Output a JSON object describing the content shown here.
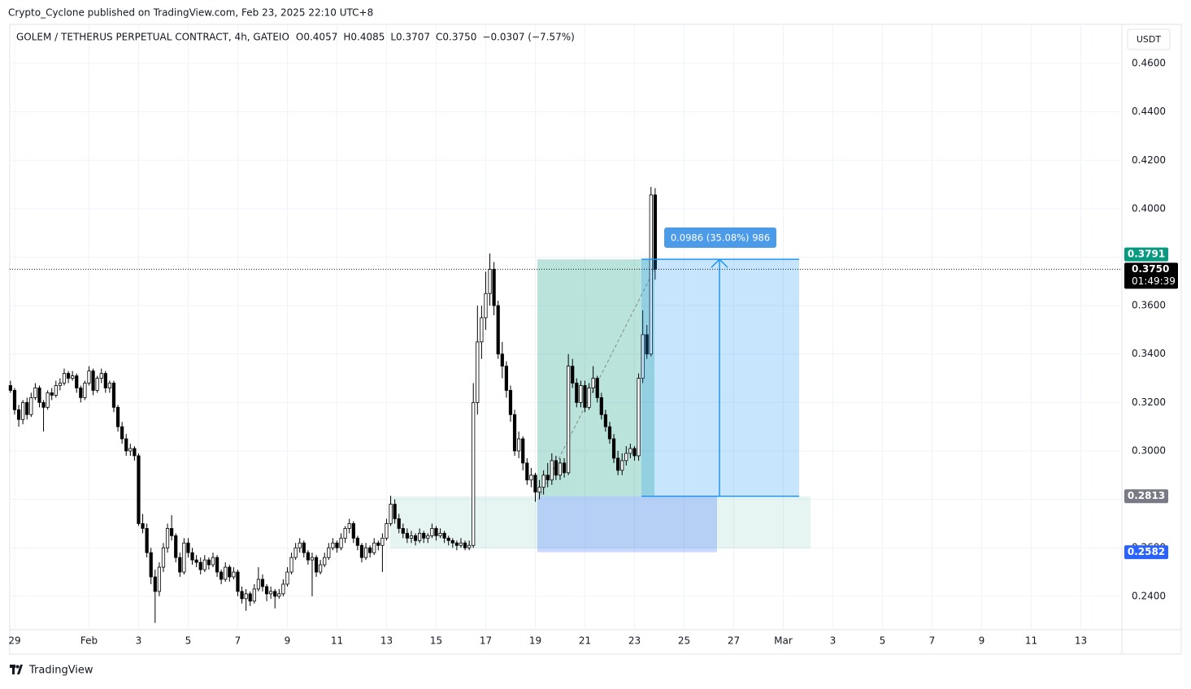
{
  "publisher_line": "Crypto_Cyclone published on TradingView.com, Feb 23, 2025 22:10 UTC+8",
  "footer": "TradingView",
  "chart_data": {
    "type": "candlestick",
    "title": "GOLEM / TETHERUS PERPETUAL CONTRACT, 4h, GATEIO",
    "header_values": [
      "O0.4057",
      "H0.4085",
      "L0.3707",
      "C0.3750",
      "−0.0307 (−7.57%)"
    ],
    "currency": "USDT",
    "xlim": [
      -4.7,
      1063.9
    ],
    "ylim": [
      0.2262,
      0.4647
    ],
    "xticks": [
      {
        "value": 0,
        "label": "29"
      },
      {
        "value": 72,
        "label": "Feb"
      },
      {
        "value": 120,
        "label": "3"
      },
      {
        "value": 168,
        "label": "5"
      },
      {
        "value": 216,
        "label": "7"
      },
      {
        "value": 264,
        "label": "9"
      },
      {
        "value": 312,
        "label": "11"
      },
      {
        "value": 360,
        "label": "13"
      },
      {
        "value": 408,
        "label": "15"
      },
      {
        "value": 456,
        "label": "17"
      },
      {
        "value": 504,
        "label": "19"
      },
      {
        "value": 552,
        "label": "21"
      },
      {
        "value": 600,
        "label": "23"
      },
      {
        "value": 648,
        "label": "25"
      },
      {
        "value": 696,
        "label": "27"
      },
      {
        "value": 744,
        "label": "Mar"
      },
      {
        "value": 792,
        "label": "3"
      },
      {
        "value": 840,
        "label": "5"
      },
      {
        "value": 888,
        "label": "7"
      },
      {
        "value": 936,
        "label": "9"
      },
      {
        "value": 984,
        "label": "11"
      },
      {
        "value": 1032,
        "label": "13"
      }
    ],
    "yticks": [
      {
        "value": 0.24,
        "label": "0.2400"
      },
      {
        "value": 0.26,
        "label": "0.2600"
      },
      {
        "value": 0.28,
        "label": "0.2800"
      },
      {
        "value": 0.3,
        "label": "0.3000"
      },
      {
        "value": 0.32,
        "label": "0.3200"
      },
      {
        "value": 0.34,
        "label": "0.3400"
      },
      {
        "value": 0.36,
        "label": "0.3600"
      },
      {
        "value": 0.38,
        "label": "0.3800"
      },
      {
        "value": 0.4,
        "label": "0.4000"
      },
      {
        "value": 0.42,
        "label": "0.4200"
      },
      {
        "value": 0.44,
        "label": "0.4400"
      },
      {
        "value": 0.46,
        "label": "0.4600"
      }
    ],
    "grid": true,
    "x": [
      -4,
      0,
      4,
      8,
      12,
      16,
      20,
      24,
      28,
      32,
      36,
      40,
      44,
      48,
      52,
      56,
      60,
      64,
      68,
      72,
      76,
      80,
      84,
      88,
      92,
      96,
      100,
      104,
      108,
      112,
      116,
      120,
      124,
      128,
      132,
      136,
      140,
      144,
      148,
      152,
      156,
      160,
      164,
      168,
      172,
      176,
      180,
      184,
      188,
      192,
      196,
      200,
      204,
      208,
      212,
      216,
      220,
      224,
      228,
      232,
      236,
      240,
      244,
      248,
      252,
      256,
      260,
      264,
      268,
      272,
      276,
      280,
      284,
      288,
      292,
      296,
      300,
      304,
      308,
      312,
      316,
      320,
      324,
      328,
      332,
      336,
      340,
      344,
      348,
      352,
      356,
      360,
      364,
      368,
      372,
      376,
      380,
      384,
      388,
      392,
      396,
      400,
      404,
      408,
      412,
      416,
      420,
      424,
      428,
      432,
      436,
      440,
      444,
      448,
      452,
      456,
      460,
      464,
      468,
      472,
      476,
      480,
      484,
      488,
      492,
      496,
      500,
      504,
      508,
      512,
      516,
      520,
      524,
      528,
      532,
      536,
      540,
      544,
      548,
      552,
      556,
      560,
      564,
      568,
      572,
      576,
      580,
      584,
      588,
      592,
      596,
      600,
      604,
      608,
      612,
      616,
      620
    ],
    "ohlc": [
      [
        0.327,
        0.329,
        0.324,
        0.325
      ],
      [
        0.325,
        0.326,
        0.315,
        0.317
      ],
      [
        0.317,
        0.319,
        0.31,
        0.313
      ],
      [
        0.313,
        0.321,
        0.311,
        0.32
      ],
      [
        0.32,
        0.322,
        0.313,
        0.315
      ],
      [
        0.315,
        0.324,
        0.314,
        0.322
      ],
      [
        0.322,
        0.328,
        0.321,
        0.326
      ],
      [
        0.326,
        0.327,
        0.318,
        0.32
      ],
      [
        0.32,
        0.321,
        0.308,
        0.318
      ],
      [
        0.318,
        0.325,
        0.317,
        0.324
      ],
      [
        0.324,
        0.326,
        0.321,
        0.323
      ],
      [
        0.323,
        0.329,
        0.322,
        0.327
      ],
      [
        0.327,
        0.33,
        0.325,
        0.328
      ],
      [
        0.328,
        0.334,
        0.327,
        0.332
      ],
      [
        0.332,
        0.333,
        0.328,
        0.33
      ],
      [
        0.33,
        0.333,
        0.329,
        0.331
      ],
      [
        0.331,
        0.332,
        0.324,
        0.326
      ],
      [
        0.326,
        0.327,
        0.32,
        0.322
      ],
      [
        0.322,
        0.329,
        0.321,
        0.328
      ],
      [
        0.328,
        0.335,
        0.327,
        0.333
      ],
      [
        0.333,
        0.334,
        0.323,
        0.325
      ],
      [
        0.325,
        0.331,
        0.324,
        0.33
      ],
      [
        0.33,
        0.334,
        0.328,
        0.332
      ],
      [
        0.332,
        0.333,
        0.324,
        0.326
      ],
      [
        0.326,
        0.329,
        0.324,
        0.328
      ],
      [
        0.328,
        0.329,
        0.316,
        0.318
      ],
      [
        0.318,
        0.319,
        0.308,
        0.31
      ],
      [
        0.31,
        0.312,
        0.303,
        0.305
      ],
      [
        0.305,
        0.307,
        0.298,
        0.3
      ],
      [
        0.3,
        0.303,
        0.298,
        0.301
      ],
      [
        0.301,
        0.302,
        0.296,
        0.298
      ],
      [
        0.298,
        0.299,
        0.269,
        0.27
      ],
      [
        0.27,
        0.274,
        0.266,
        0.268
      ],
      [
        0.268,
        0.27,
        0.256,
        0.258
      ],
      [
        0.258,
        0.26,
        0.245,
        0.248
      ],
      [
        0.248,
        0.251,
        0.229,
        0.242
      ],
      [
        0.242,
        0.254,
        0.24,
        0.252
      ],
      [
        0.252,
        0.262,
        0.25,
        0.26
      ],
      [
        0.26,
        0.27,
        0.258,
        0.268
      ],
      [
        0.268,
        0.2735,
        0.263,
        0.265
      ],
      [
        0.265,
        0.266,
        0.254,
        0.256
      ],
      [
        0.256,
        0.258,
        0.248,
        0.25
      ],
      [
        0.25,
        0.264,
        0.249,
        0.262
      ],
      [
        0.262,
        0.264,
        0.256,
        0.258
      ],
      [
        0.258,
        0.26,
        0.253,
        0.255
      ],
      [
        0.255,
        0.257,
        0.252,
        0.254
      ],
      [
        0.254,
        0.256,
        0.249,
        0.251
      ],
      [
        0.251,
        0.257,
        0.25,
        0.255
      ],
      [
        0.255,
        0.256,
        0.251,
        0.253
      ],
      [
        0.253,
        0.258,
        0.252,
        0.256
      ],
      [
        0.256,
        0.257,
        0.248,
        0.25
      ],
      [
        0.25,
        0.251,
        0.245,
        0.247
      ],
      [
        0.247,
        0.254,
        0.246,
        0.252
      ],
      [
        0.252,
        0.253,
        0.246,
        0.248
      ],
      [
        0.248,
        0.252,
        0.247,
        0.25
      ],
      [
        0.25,
        0.251,
        0.24,
        0.242
      ],
      [
        0.242,
        0.244,
        0.237,
        0.239
      ],
      [
        0.239,
        0.243,
        0.234,
        0.241
      ],
      [
        0.241,
        0.242,
        0.236,
        0.238
      ],
      [
        0.238,
        0.245,
        0.237,
        0.243
      ],
      [
        0.243,
        0.252,
        0.242,
        0.247
      ],
      [
        0.247,
        0.249,
        0.242,
        0.244
      ],
      [
        0.244,
        0.245,
        0.238,
        0.241
      ],
      [
        0.241,
        0.244,
        0.239,
        0.242
      ],
      [
        0.242,
        0.243,
        0.235,
        0.24
      ],
      [
        0.24,
        0.243,
        0.239,
        0.241
      ],
      [
        0.241,
        0.247,
        0.24,
        0.245
      ],
      [
        0.245,
        0.252,
        0.244,
        0.25
      ],
      [
        0.25,
        0.258,
        0.249,
        0.256
      ],
      [
        0.256,
        0.262,
        0.255,
        0.26
      ],
      [
        0.26,
        0.264,
        0.258,
        0.262
      ],
      [
        0.262,
        0.263,
        0.256,
        0.258
      ],
      [
        0.258,
        0.259,
        0.253,
        0.255
      ],
      [
        0.255,
        0.258,
        0.24,
        0.256
      ],
      [
        0.256,
        0.257,
        0.248,
        0.25
      ],
      [
        0.25,
        0.255,
        0.249,
        0.253
      ],
      [
        0.253,
        0.258,
        0.252,
        0.256
      ],
      [
        0.256,
        0.262,
        0.255,
        0.26
      ],
      [
        0.26,
        0.264,
        0.259,
        0.262
      ],
      [
        0.262,
        0.263,
        0.258,
        0.26
      ],
      [
        0.26,
        0.266,
        0.259,
        0.264
      ],
      [
        0.264,
        0.269,
        0.262,
        0.268
      ],
      [
        0.268,
        0.272,
        0.266,
        0.27
      ],
      [
        0.27,
        0.271,
        0.262,
        0.264
      ],
      [
        0.264,
        0.265,
        0.259,
        0.261
      ],
      [
        0.261,
        0.262,
        0.254,
        0.256
      ],
      [
        0.256,
        0.262,
        0.255,
        0.26
      ],
      [
        0.26,
        0.261,
        0.256,
        0.258
      ],
      [
        0.258,
        0.264,
        0.257,
        0.262
      ],
      [
        0.262,
        0.263,
        0.259,
        0.261
      ],
      [
        0.261,
        0.266,
        0.25,
        0.264
      ],
      [
        0.264,
        0.272,
        0.263,
        0.27
      ],
      [
        0.27,
        0.2815,
        0.269,
        0.278
      ],
      [
        0.278,
        0.28,
        0.27,
        0.272
      ],
      [
        0.272,
        0.274,
        0.266,
        0.268
      ],
      [
        0.268,
        0.27,
        0.264,
        0.266
      ],
      [
        0.266,
        0.268,
        0.262,
        0.264
      ],
      [
        0.264,
        0.267,
        0.262,
        0.265
      ],
      [
        0.265,
        0.266,
        0.261,
        0.263
      ],
      [
        0.263,
        0.268,
        0.262,
        0.266
      ],
      [
        0.266,
        0.267,
        0.262,
        0.264
      ],
      [
        0.264,
        0.266,
        0.262,
        0.265
      ],
      [
        0.265,
        0.27,
        0.264,
        0.268
      ],
      [
        0.268,
        0.269,
        0.263,
        0.265
      ],
      [
        0.265,
        0.268,
        0.264,
        0.266
      ],
      [
        0.266,
        0.267,
        0.262,
        0.264
      ],
      [
        0.264,
        0.265,
        0.261,
        0.263
      ],
      [
        0.263,
        0.264,
        0.26,
        0.262
      ],
      [
        0.262,
        0.263,
        0.259,
        0.261
      ],
      [
        0.261,
        0.264,
        0.26,
        0.262
      ],
      [
        0.262,
        0.263,
        0.259,
        0.26
      ],
      [
        0.26,
        0.263,
        0.259,
        0.261
      ],
      [
        0.261,
        0.328,
        0.26,
        0.32
      ],
      [
        0.32,
        0.36,
        0.315,
        0.345
      ],
      [
        0.345,
        0.36,
        0.338,
        0.355
      ],
      [
        0.355,
        0.374,
        0.35,
        0.365
      ],
      [
        0.365,
        0.3815,
        0.36,
        0.375
      ],
      [
        0.375,
        0.378,
        0.356,
        0.36
      ],
      [
        0.36,
        0.362,
        0.338,
        0.34
      ],
      [
        0.34,
        0.345,
        0.33,
        0.335
      ],
      [
        0.335,
        0.337,
        0.322,
        0.325
      ],
      [
        0.325,
        0.327,
        0.312,
        0.315
      ],
      [
        0.315,
        0.317,
        0.298,
        0.3
      ],
      [
        0.3,
        0.308,
        0.297,
        0.305
      ],
      [
        0.305,
        0.306,
        0.292,
        0.295
      ],
      [
        0.295,
        0.297,
        0.286,
        0.288
      ],
      [
        0.288,
        0.293,
        0.285,
        0.29
      ],
      [
        0.29,
        0.291,
        0.279,
        0.283
      ],
      [
        0.283,
        0.288,
        0.28,
        0.285
      ],
      [
        0.285,
        0.292,
        0.282,
        0.29
      ],
      [
        0.29,
        0.295,
        0.285,
        0.288
      ],
      [
        0.288,
        0.299,
        0.286,
        0.296
      ],
      [
        0.296,
        0.298,
        0.288,
        0.29
      ],
      [
        0.29,
        0.297,
        0.288,
        0.295
      ],
      [
        0.295,
        0.297,
        0.289,
        0.291
      ],
      [
        0.291,
        0.34,
        0.29,
        0.335
      ],
      [
        0.335,
        0.338,
        0.326,
        0.328
      ],
      [
        0.328,
        0.33,
        0.318,
        0.32
      ],
      [
        0.32,
        0.329,
        0.318,
        0.327
      ],
      [
        0.327,
        0.329,
        0.316,
        0.318
      ],
      [
        0.318,
        0.328,
        0.317,
        0.326
      ],
      [
        0.326,
        0.335,
        0.324,
        0.33
      ],
      [
        0.33,
        0.331,
        0.32,
        0.322
      ],
      [
        0.322,
        0.324,
        0.313,
        0.315
      ],
      [
        0.315,
        0.317,
        0.308,
        0.31
      ],
      [
        0.31,
        0.312,
        0.303,
        0.305
      ],
      [
        0.305,
        0.307,
        0.295,
        0.297
      ],
      [
        0.297,
        0.3,
        0.29,
        0.292
      ],
      [
        0.292,
        0.299,
        0.29,
        0.296
      ],
      [
        0.296,
        0.302,
        0.294,
        0.299
      ],
      [
        0.299,
        0.303,
        0.297,
        0.301
      ],
      [
        0.301,
        0.302,
        0.296,
        0.298
      ],
      [
        0.298,
        0.332,
        0.296,
        0.33
      ],
      [
        0.33,
        0.358,
        0.328,
        0.348
      ],
      [
        0.348,
        0.352,
        0.338,
        0.34
      ],
      [
        0.34,
        0.409,
        0.339,
        0.4057
      ],
      [
        0.4057,
        0.4085,
        0.3707,
        0.375
      ]
    ],
    "up_color": "#ffffff",
    "down_color": "#000000",
    "last_price": {
      "value": 0.375,
      "label": "0.3750"
    },
    "countdown": "01:49:39",
    "target_price": {
      "value": 0.3791,
      "label": "0.3791"
    },
    "entry_price": {
      "value": 0.2813,
      "label": "0.2813"
    },
    "stop_price": {
      "value": 0.2582,
      "label": "0.2582"
    },
    "measure_label": "0.0986 (35.08%) 986"
  }
}
